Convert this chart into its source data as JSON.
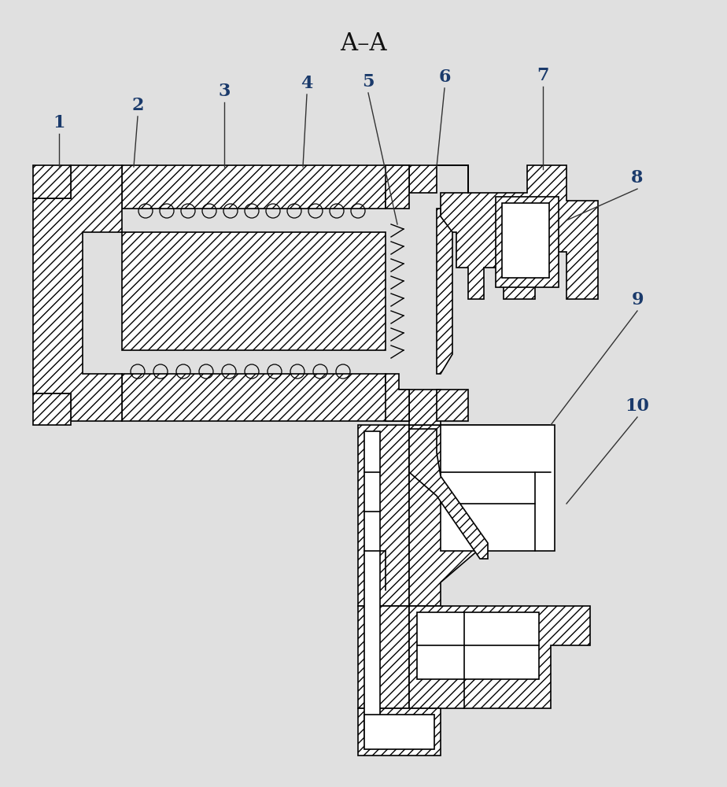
{
  "title": "A–A",
  "bg_color": "#e0e0e0",
  "line_color": "#000000",
  "label_color": "#1a3a6b",
  "label_fontsize": 16,
  "hatch": "///",
  "lw": 1.2
}
